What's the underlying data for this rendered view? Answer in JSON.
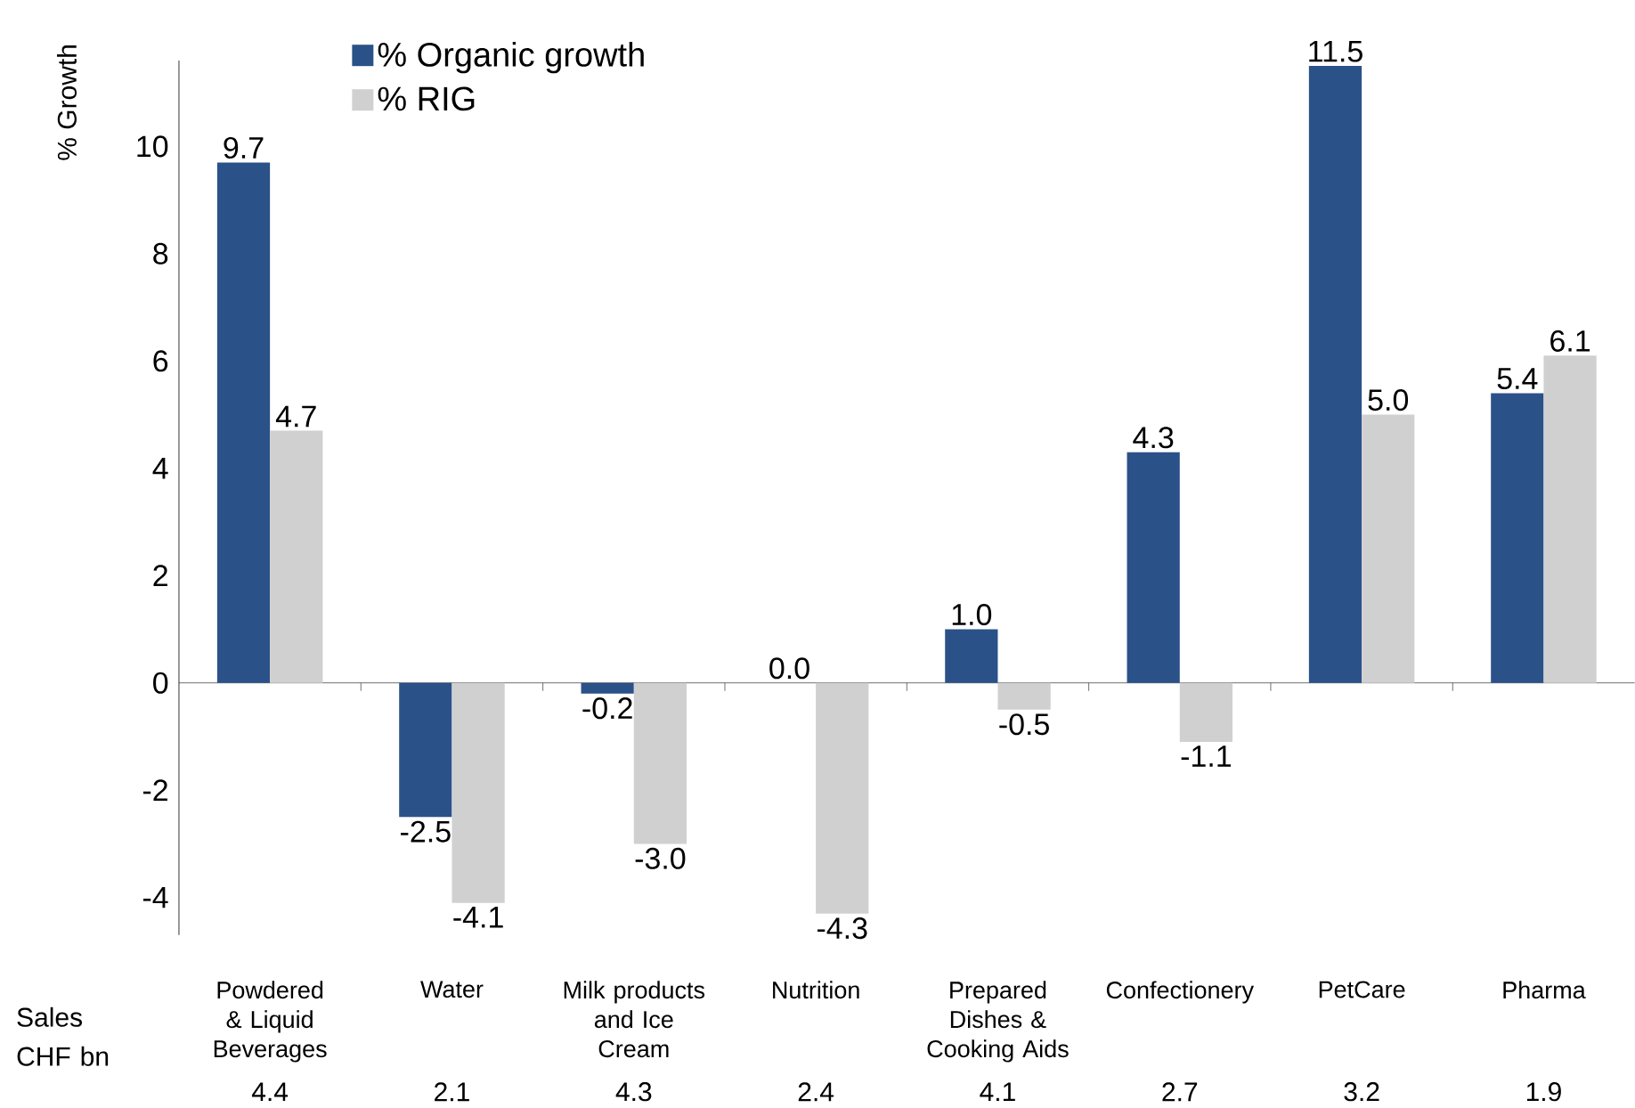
{
  "chart_data": {
    "type": "bar",
    "ylabel": "% Growth",
    "categories": [
      "Powdered & Liquid Beverages",
      "Water",
      "Milk products and Ice Cream",
      "Nutrition",
      "Prepared Dishes & Cooking Aids",
      "Confectionery",
      "PetCare",
      "Pharma"
    ],
    "series": [
      {
        "name": "% Organic growth",
        "color": "#2b5189",
        "values": [
          9.7,
          -2.5,
          -0.2,
          0.0,
          1.0,
          4.3,
          11.5,
          5.4
        ],
        "value_labels": [
          "9.7",
          "-2.5",
          "-0.2",
          "0.0",
          "1.0",
          "4.3",
          "11.5",
          "5.4"
        ]
      },
      {
        "name": "% RIG",
        "color": "#d0d0d0",
        "values": [
          4.7,
          -4.1,
          -3.0,
          -4.3,
          -0.5,
          -1.1,
          5.0,
          6.1
        ],
        "value_labels": [
          "4.7",
          "-4.1",
          "-3.0",
          "-4.3",
          "-0.5",
          "-1.1",
          "5.0",
          "6.1"
        ]
      }
    ],
    "ylim": [
      -4.7,
      11.6
    ],
    "yticks": [
      -4,
      -2,
      0,
      2,
      4,
      6,
      8,
      10
    ],
    "legend": "top left",
    "annotations": [
      "Sales CHF bn",
      "4.4",
      "2.1",
      "4.3",
      "2.4",
      "4.1",
      "2.7",
      "3.2",
      "1.9"
    ]
  }
}
